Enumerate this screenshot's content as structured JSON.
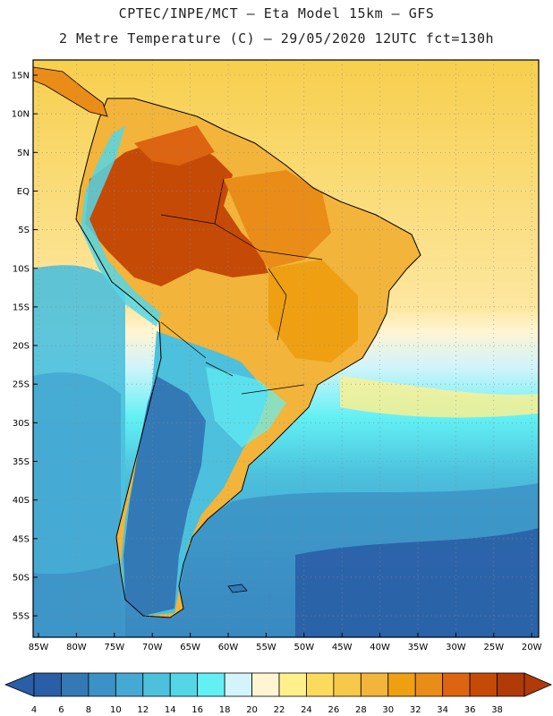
{
  "title": {
    "line1": "CPTEC/INPE/MCT –  Eta Model 15km – GFS",
    "line2": "2 Metre Temperature (C) – 29/05/2020 12UTC fct=130h"
  },
  "map": {
    "lat_labels": [
      "15N",
      "10N",
      "5N",
      "EQ",
      "5S",
      "10S",
      "15S",
      "20S",
      "25S",
      "30S",
      "35S",
      "40S",
      "45S",
      "50S",
      "55S"
    ],
    "lon_labels": [
      "85W",
      "80W",
      "75W",
      "70W",
      "65W",
      "60W",
      "55W",
      "50W",
      "45W",
      "40W",
      "35W",
      "30W",
      "25W",
      "20W"
    ]
  },
  "colorbar": {
    "labels": [
      "4",
      "6",
      "8",
      "10",
      "12",
      "14",
      "16",
      "18",
      "20",
      "22",
      "24",
      "26",
      "28",
      "30",
      "32",
      "34",
      "36",
      "38"
    ],
    "colors": [
      "#2a5ea6",
      "#3379b6",
      "#3c92c6",
      "#45a9d3",
      "#4cc0dc",
      "#55d6e6",
      "#62f0f4",
      "#d2f4fa",
      "#fff5d2",
      "#fff08c",
      "#fcdb5c",
      "#f8c84a",
      "#f2b43a",
      "#eea012",
      "#ea8c18",
      "#dd6410",
      "#c54a06",
      "#b03a08"
    ]
  }
}
